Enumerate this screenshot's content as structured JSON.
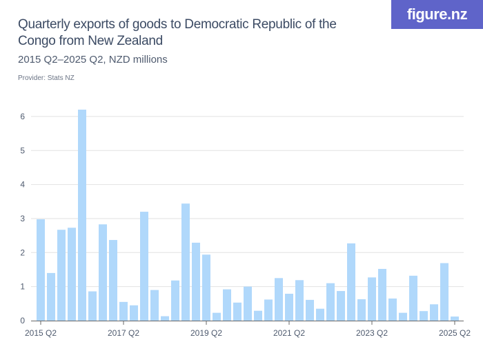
{
  "header": {
    "title": "Quarterly exports of goods to Democratic Republic of the Congo from New Zealand",
    "subtitle": "2015 Q2–2025 Q2, NZD millions",
    "provider": "Provider: Stats NZ",
    "logo": "figure.nz"
  },
  "chart_data": {
    "type": "bar",
    "title": "Quarterly exports of goods to Democratic Republic of the Congo from New Zealand",
    "subtitle": "2015 Q2–2025 Q2, NZD millions",
    "xlabel": "",
    "ylabel": "",
    "ylim": [
      0,
      6.2
    ],
    "yticks": [
      0,
      1,
      2,
      3,
      4,
      5,
      6
    ],
    "xtick_labels": [
      "2015 Q2",
      "2017 Q2",
      "2019 Q2",
      "2021 Q2",
      "2023 Q2",
      "2025 Q2"
    ],
    "grid": true,
    "bar_color": "#b0d8fb",
    "categories": [
      "2015 Q2",
      "2015 Q3",
      "2015 Q4",
      "2016 Q1",
      "2016 Q2",
      "2016 Q3",
      "2016 Q4",
      "2017 Q1",
      "2017 Q2",
      "2017 Q3",
      "2017 Q4",
      "2018 Q1",
      "2018 Q2",
      "2018 Q3",
      "2018 Q4",
      "2019 Q1",
      "2019 Q2",
      "2019 Q3",
      "2019 Q4",
      "2020 Q1",
      "2020 Q2",
      "2020 Q3",
      "2020 Q4",
      "2021 Q1",
      "2021 Q2",
      "2021 Q3",
      "2021 Q4",
      "2022 Q1",
      "2022 Q2",
      "2022 Q3",
      "2022 Q4",
      "2023 Q1",
      "2023 Q2",
      "2023 Q3",
      "2023 Q4",
      "2024 Q1",
      "2024 Q2",
      "2024 Q3",
      "2024 Q4",
      "2025 Q1",
      "2025 Q2"
    ],
    "values": [
      2.98,
      1.4,
      2.67,
      2.73,
      6.2,
      0.86,
      2.83,
      2.37,
      0.55,
      0.45,
      3.2,
      0.9,
      0.13,
      1.18,
      3.44,
      2.29,
      1.94,
      0.23,
      0.92,
      0.53,
      1.0,
      0.29,
      0.62,
      1.25,
      0.79,
      1.19,
      0.61,
      0.35,
      1.1,
      0.87,
      2.27,
      0.63,
      1.27,
      1.52,
      0.65,
      0.23,
      1.32,
      0.28,
      0.48,
      1.69,
      0.12
    ]
  }
}
